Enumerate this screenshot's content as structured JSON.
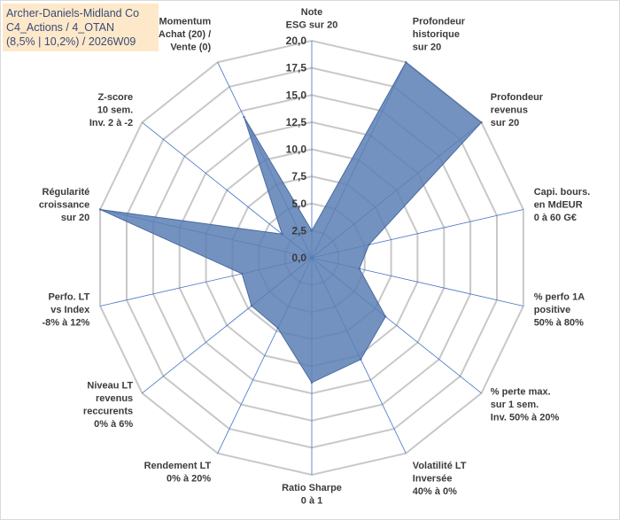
{
  "info": {
    "line1": "Archer-Daniels-Midland Co",
    "line2": "C4_Actions / 4_OTAN",
    "line3": "(8,5% | 10,2%) / 2026W09"
  },
  "chart_data": {
    "type": "radar",
    "rmin": 0,
    "rmax": 20,
    "ticks": [
      "0,0",
      "2,5",
      "5,0",
      "7,5",
      "10,0",
      "12,5",
      "15,0",
      "17,5",
      "20,0"
    ],
    "axes": [
      [
        "Note",
        "ESG sur 20"
      ],
      [
        "Profondeur",
        "historique",
        "sur 20"
      ],
      [
        "Profondeur",
        "revenus",
        "sur 20"
      ],
      [
        "Capi. bours.",
        "en MdEUR",
        "0 à 60 G€"
      ],
      [
        "% perfo 1A",
        "positive",
        "50% à 80%"
      ],
      [
        "% perte max.",
        "sur 1 sem.",
        "Inv. 50% à 20%"
      ],
      [
        "Volatilité LT",
        "Inversée",
        "40% à 0%"
      ],
      [
        "Ratio Sharpe",
        "0 à 1"
      ],
      [
        "Rendement LT",
        "0% à 20%"
      ],
      [
        "Niveau LT",
        "revenus",
        "reccurents",
        "0% à 6%"
      ],
      [
        "Perfo. LT",
        "vs Index",
        "-8% à 12%"
      ],
      [
        "Régularité",
        "croissance",
        "sur 20"
      ],
      [
        "Z-score",
        "10 sem.",
        "Inv. 2 à -2"
      ],
      [
        "Momentum",
        "Achat (20) /",
        "Vente (0)"
      ]
    ],
    "values": [
      2.5,
      20,
      20,
      5.4,
      4.5,
      8.7,
      10.4,
      11.5,
      7.2,
      7.1,
      6.6,
      20,
      3.5,
      14.4
    ],
    "colors": {
      "fill": "#5b7fb5",
      "stroke": "#4a6aa0",
      "grid": "#c8c8c8",
      "spoke": "#4472c4"
    }
  }
}
